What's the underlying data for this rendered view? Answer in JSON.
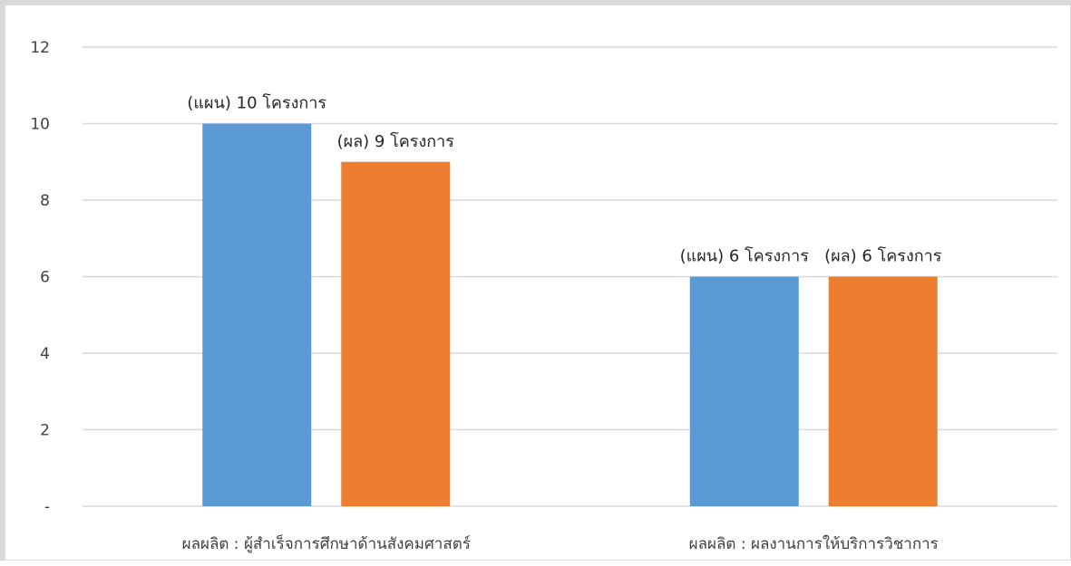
{
  "chart_data": {
    "type": "bar",
    "categories": [
      "ผลผลิต : ผู้สำเร็จการศึกษาด้านสังคมศาสตร์",
      "ผลผลิต : ผลงานการให้บริการวิชาการ"
    ],
    "series": [
      {
        "values": [
          10,
          6
        ],
        "color": "#5b9bd5",
        "data_labels": [
          "(แผน)  10 โครงการ",
          "(แผน)  6 โครงการ"
        ]
      },
      {
        "values": [
          9,
          6
        ],
        "color": "#ed7d31",
        "data_labels": [
          "(ผล)  9 โครงการ",
          "(ผล)  6 โครงการ"
        ]
      }
    ],
    "y_ticks": [
      "-",
      "2",
      "4",
      "6",
      "8",
      "10",
      "12"
    ],
    "ylim": [
      0,
      12
    ],
    "grid": true,
    "legend": "none"
  }
}
